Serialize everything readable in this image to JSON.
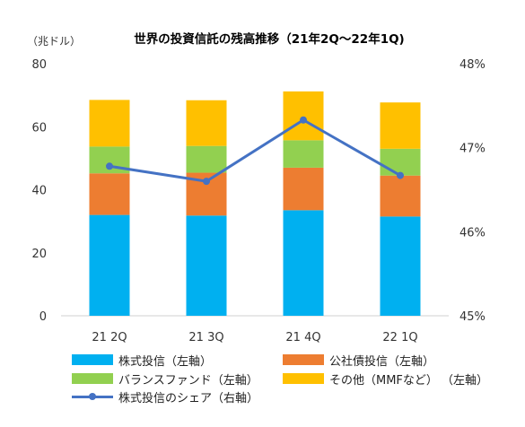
{
  "chart_data": {
    "type": "bar",
    "stacked": true,
    "title": "世界の投資信託の残高推移（21年2Q～22年1Q)",
    "ylabel_left": "（兆ドル）",
    "categories": [
      "21 2Q",
      "21 3Q",
      "21 4Q",
      "22 1Q"
    ],
    "ylim_left": [
      0,
      80
    ],
    "yticks_left": [
      "0",
      "20",
      "40",
      "60",
      "80"
    ],
    "ylim_right": [
      45,
      48
    ],
    "yticks_right": [
      "45%",
      "46%",
      "47%",
      "48%"
    ],
    "series": [
      {
        "name": "株式投信（左軸）",
        "color": "#00B0F0",
        "values": [
          32.0,
          31.8,
          33.5,
          31.5
        ]
      },
      {
        "name": "公社債投信（左軸）",
        "color": "#ED7D31",
        "values": [
          13.2,
          13.6,
          13.5,
          13.0
        ]
      },
      {
        "name": "バランスファンド（左軸）",
        "color": "#92D050",
        "values": [
          8.5,
          8.5,
          8.7,
          8.5
        ]
      },
      {
        "name": "その他（MMFなど） （左軸）",
        "color": "#FFC000",
        "values": [
          14.8,
          14.5,
          15.5,
          14.7
        ]
      }
    ],
    "line_series": {
      "name": "株式投信のシェア（右軸）",
      "color": "#4472C4",
      "values": [
        46.78,
        46.6,
        47.33,
        46.67
      ]
    }
  }
}
